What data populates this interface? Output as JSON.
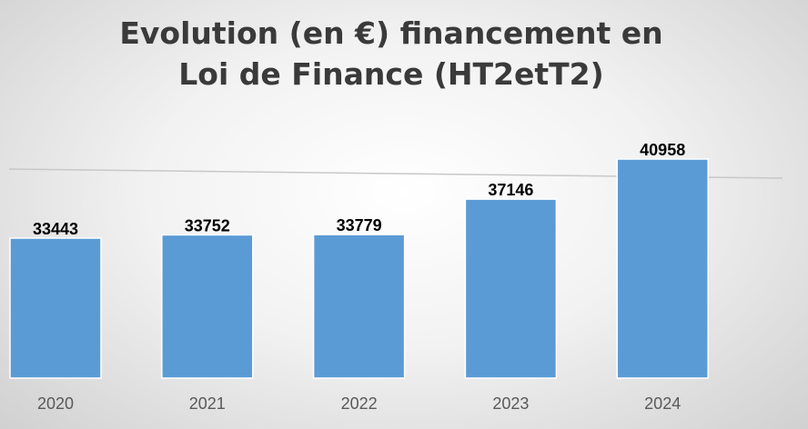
{
  "chart_data": {
    "type": "bar",
    "title": "Evolution (en €) financement en\nLoi de Finance (HT2etT2)",
    "categories": [
      "2020",
      "2021",
      "2022",
      "2023",
      "2024"
    ],
    "values": [
      33443,
      33752,
      33779,
      37146,
      40958
    ],
    "data_labels": [
      "33443",
      "33752",
      "33779",
      "37146",
      "40958"
    ],
    "bar_color": "#5b9bd5",
    "grid": true,
    "legend": "none"
  }
}
